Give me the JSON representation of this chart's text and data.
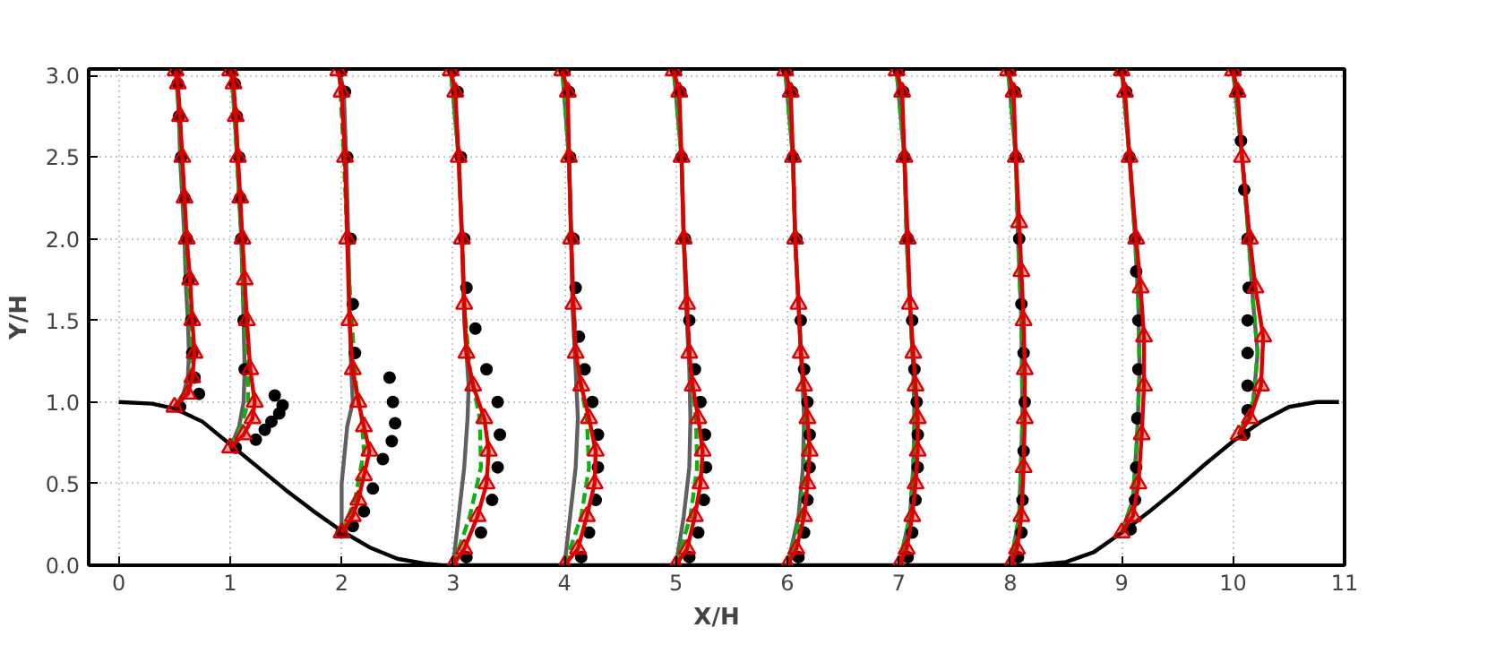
{
  "chart_data": {
    "type": "line",
    "xlabel": "X/H",
    "ylabel": "Y/H",
    "xlim": [
      -0.27,
      11
    ],
    "ylim": [
      0,
      3.04
    ],
    "xticks": [
      0,
      1,
      2,
      3,
      4,
      5,
      6,
      7,
      8,
      9,
      10,
      11
    ],
    "yticks": [
      {
        "value": 0,
        "label": "0.0"
      },
      0.5,
      {
        "value": 1,
        "label": "1.0"
      },
      1.5,
      {
        "value": 2,
        "label": "2.0"
      },
      2.5,
      {
        "value": 3,
        "label": "3.0"
      }
    ],
    "grid": true,
    "series": [
      {
        "color": "#000000",
        "line_style": "solid",
        "marker": "none",
        "x": [
          0,
          0.3,
          0.5,
          0.75,
          1,
          1.25,
          1.5,
          1.75,
          2,
          2.25,
          2.5,
          2.75,
          2.9,
          8.2,
          8.5,
          8.75,
          9,
          9.25,
          9.5,
          9.75,
          10,
          10.25,
          10.5,
          10.75,
          10.95
        ],
        "values": [
          1,
          0.99,
          0.96,
          0.88,
          0.74,
          0.6,
          0.46,
          0.33,
          0.21,
          0.11,
          0.04,
          0.01,
          0,
          0,
          0.02,
          0.08,
          0.2,
          0.33,
          0.47,
          0.62,
          0.76,
          0.88,
          0.97,
          1,
          1
        ]
      },
      {
        "color": "#606060",
        "line_style": "solid",
        "marker": "none",
        "x": [
          0.5,
          0.58,
          0.62,
          0.63,
          0.62,
          0.6,
          0.59,
          0.57,
          0.55,
          0.54,
          0.52,
          0.51,
          null,
          1.0,
          1.08,
          1.12,
          1.13,
          1.12,
          1.1,
          1.08,
          1.06,
          1.04,
          1.01,
          null,
          2.0,
          2.0,
          2.05,
          2.1,
          2.08,
          2.06,
          2.04,
          2.02,
          1.98,
          null,
          3.0,
          3.05,
          3.1,
          3.13,
          3.14,
          3.1,
          3.08,
          3.05,
          2.98,
          null,
          4.0,
          4.05,
          4.1,
          4.12,
          4.1,
          4.07,
          4.06,
          4.04,
          3.98,
          null,
          5.0,
          5.07,
          5.12,
          5.13,
          5.12,
          5.09,
          5.07,
          5.05,
          4.98,
          null,
          6.0,
          6.1,
          6.14,
          6.15,
          6.13,
          6.1,
          6.07,
          6.05,
          5.98,
          null,
          7.0,
          7.1,
          7.13,
          7.14,
          7.13,
          7.1,
          7.07,
          7.05,
          6.98,
          null,
          8.0,
          8.08,
          8.11,
          8.1,
          8.07,
          8.05,
          7.98,
          null,
          9.0,
          9.1,
          9.14,
          9.16,
          9.15,
          9.12,
          9.07,
          9.0,
          null,
          10.05,
          10.18,
          10.22,
          10.18,
          10.14,
          10.08,
          10.0
        ],
        "values": [
          0.97,
          1.05,
          1.15,
          1.3,
          1.5,
          1.75,
          2.0,
          2.25,
          2.5,
          2.75,
          2.95,
          3.03,
          null,
          0.72,
          0.85,
          1.0,
          1.2,
          1.5,
          2.0,
          2.25,
          2.5,
          2.75,
          3.03,
          null,
          0.2,
          0.5,
          0.85,
          1.0,
          1.3,
          2.0,
          2.5,
          2.9,
          3.03,
          null,
          0,
          0.3,
          0.6,
          0.9,
          1.1,
          1.5,
          2.0,
          2.5,
          3.03,
          null,
          0,
          0.3,
          0.6,
          0.9,
          1.2,
          1.6,
          2.0,
          2.5,
          3.03,
          null,
          0,
          0.3,
          0.6,
          0.9,
          1.2,
          1.6,
          2.0,
          2.5,
          3.03,
          null,
          0,
          0.3,
          0.6,
          0.9,
          1.2,
          1.6,
          2.0,
          2.5,
          3.03,
          null,
          0,
          0.3,
          0.6,
          0.9,
          1.2,
          1.6,
          2.0,
          2.5,
          3.03,
          null,
          0,
          0.3,
          0.9,
          1.5,
          2.0,
          2.5,
          3.03,
          null,
          0.2,
          0.4,
          0.8,
          1.2,
          1.6,
          2.0,
          2.5,
          3.03,
          null,
          0.8,
          1.0,
          1.3,
          1.6,
          2.0,
          2.5,
          3.03
        ]
      },
      {
        "color": "#10b010",
        "line_style": "dashed",
        "marker": "none",
        "x": [
          0.5,
          0.6,
          0.64,
          0.66,
          0.64,
          0.62,
          0.6,
          0.58,
          0.56,
          0.54,
          0.53,
          0.51,
          null,
          1.0,
          1.1,
          1.16,
          1.16,
          1.13,
          1.1,
          1.08,
          1.06,
          1.04,
          1.01,
          null,
          2.0,
          2.12,
          2.2,
          2.18,
          2.13,
          2.08,
          2.05,
          2.02,
          1.98,
          null,
          3.0,
          3.15,
          3.25,
          3.24,
          3.15,
          3.1,
          3.08,
          3.05,
          2.98,
          null,
          4.0,
          4.15,
          4.22,
          4.2,
          4.12,
          4.08,
          4.06,
          4.04,
          3.98,
          null,
          5.0,
          5.13,
          5.19,
          5.18,
          5.13,
          5.1,
          5.07,
          5.05,
          4.98,
          null,
          6.0,
          6.12,
          6.16,
          6.16,
          6.13,
          6.1,
          6.07,
          6.05,
          5.98,
          null,
          7.0,
          7.1,
          7.13,
          7.14,
          7.13,
          7.1,
          7.07,
          7.05,
          6.98,
          null,
          8.0,
          8.08,
          8.11,
          8.1,
          8.07,
          8.05,
          7.98,
          null,
          9.0,
          9.1,
          9.14,
          9.16,
          9.15,
          9.12,
          9.07,
          9.0,
          null,
          10.05,
          10.18,
          10.22,
          10.18,
          10.14,
          10.08,
          10.0
        ],
        "values": [
          0.97,
          1.05,
          1.15,
          1.3,
          1.5,
          1.75,
          2.0,
          2.25,
          2.5,
          2.75,
          2.95,
          3.03,
          null,
          0.72,
          0.85,
          1.0,
          1.2,
          1.5,
          2.0,
          2.25,
          2.5,
          2.75,
          3.03,
          null,
          0.2,
          0.4,
          0.7,
          0.9,
          1.1,
          1.6,
          2.0,
          2.5,
          3.03,
          null,
          0,
          0.3,
          0.6,
          0.9,
          1.2,
          1.6,
          2.0,
          2.5,
          3.03,
          null,
          0,
          0.3,
          0.6,
          0.9,
          1.2,
          1.6,
          2.0,
          2.5,
          3.03,
          null,
          0,
          0.3,
          0.6,
          0.9,
          1.2,
          1.6,
          2.0,
          2.5,
          3.03,
          null,
          0,
          0.3,
          0.6,
          0.9,
          1.2,
          1.6,
          2.0,
          2.5,
          3.03,
          null,
          0,
          0.3,
          0.6,
          0.9,
          1.2,
          1.6,
          2.0,
          2.5,
          3.03,
          null,
          0,
          0.3,
          0.9,
          1.5,
          2.0,
          2.5,
          3.03,
          null,
          0.2,
          0.4,
          0.8,
          1.2,
          1.6,
          2.0,
          2.5,
          3.03,
          null,
          0.8,
          1.0,
          1.3,
          1.6,
          2.0,
          2.5,
          3.03
        ]
      },
      {
        "type": "scatter",
        "color": "#000000",
        "marker": "circle",
        "x": [
          0.55,
          0.72,
          0.68,
          0.66,
          0.65,
          0.63,
          0.61,
          0.59,
          0.56,
          0.54,
          0.53,
          0.52,
          1.05,
          1.23,
          1.31,
          1.37,
          1.44,
          1.47,
          1.4,
          1.13,
          1.12,
          1.1,
          1.09,
          1.08,
          1.06,
          1.04,
          1.01,
          2.0,
          2.1,
          2.2,
          2.28,
          2.37,
          2.45,
          2.48,
          2.46,
          2.43,
          2.12,
          2.1,
          2.08,
          2.05,
          2.03,
          2.0,
          3.12,
          3.25,
          3.35,
          3.4,
          3.42,
          3.4,
          3.3,
          3.2,
          3.12,
          3.1,
          3.07,
          3.04,
          3.0,
          4.15,
          4.22,
          4.28,
          4.3,
          4.3,
          4.25,
          4.18,
          4.13,
          4.1,
          4.08,
          4.05,
          4.04,
          4.0,
          5.12,
          5.2,
          5.25,
          5.27,
          5.26,
          5.22,
          5.17,
          5.12,
          5.08,
          5.05,
          5.04,
          5.0,
          6.1,
          6.15,
          6.18,
          6.2,
          6.2,
          6.18,
          6.15,
          6.12,
          6.08,
          6.05,
          6.04,
          6.0,
          7.08,
          7.12,
          7.15,
          7.17,
          7.17,
          7.16,
          7.14,
          7.12,
          7.08,
          7.05,
          7.04,
          7.0,
          8.07,
          8.1,
          8.11,
          8.12,
          8.13,
          8.12,
          8.1,
          8.08,
          8.05,
          8.04,
          8.0,
          9.08,
          9.12,
          9.13,
          9.14,
          9.15,
          9.15,
          9.13,
          9.12,
          9.07,
          9.04,
          9.0,
          10.1,
          10.13,
          10.13,
          10.13,
          10.13,
          10.14,
          10.13,
          10.1,
          10.07,
          10.04,
          10.02
        ],
        "values": [
          0.97,
          1.05,
          1.15,
          1.3,
          1.5,
          1.75,
          2.0,
          2.25,
          2.5,
          2.75,
          2.95,
          3.03,
          0.72,
          0.77,
          0.83,
          0.88,
          0.93,
          0.98,
          1.04,
          1.2,
          1.5,
          2.0,
          2.25,
          2.5,
          2.75,
          2.95,
          3.03,
          0.2,
          0.24,
          0.33,
          0.47,
          0.65,
          0.76,
          0.87,
          1.0,
          1.15,
          1.3,
          1.6,
          2.0,
          2.5,
          2.9,
          3.03,
          0.05,
          0.2,
          0.4,
          0.6,
          0.8,
          1.0,
          1.2,
          1.45,
          1.7,
          2.0,
          2.5,
          2.9,
          3.03,
          0.05,
          0.2,
          0.4,
          0.6,
          0.8,
          1.0,
          1.2,
          1.4,
          1.7,
          2.0,
          2.5,
          2.9,
          3.03,
          0.05,
          0.2,
          0.4,
          0.6,
          0.8,
          1.0,
          1.2,
          1.5,
          2.0,
          2.5,
          2.9,
          3.03,
          0.05,
          0.2,
          0.4,
          0.6,
          0.8,
          1.0,
          1.2,
          1.5,
          2.0,
          2.5,
          2.9,
          3.03,
          0.05,
          0.2,
          0.4,
          0.6,
          0.8,
          1.0,
          1.2,
          1.5,
          2.0,
          2.5,
          2.9,
          3.03,
          0.05,
          0.2,
          0.4,
          0.7,
          1.0,
          1.3,
          1.6,
          2.0,
          2.5,
          2.9,
          3.03,
          0.22,
          0.4,
          0.6,
          0.9,
          1.2,
          1.5,
          1.8,
          2.0,
          2.5,
          2.9,
          3.03,
          0.8,
          0.95,
          1.1,
          1.3,
          1.5,
          1.7,
          2.0,
          2.3,
          2.6,
          2.9,
          3.03
        ]
      },
      {
        "color": "#dd0000",
        "line_style": "solid",
        "marker": "triangle",
        "x": [
          0.5,
          0.62,
          0.66,
          0.68,
          0.66,
          0.64,
          0.61,
          0.59,
          0.57,
          0.55,
          0.53,
          0.51,
          null,
          1.0,
          1.12,
          1.2,
          1.22,
          1.18,
          1.15,
          1.13,
          1.11,
          1.09,
          1.07,
          1.05,
          1.03,
          1.0,
          null,
          2.0,
          2.1,
          2.15,
          2.2,
          2.25,
          2.2,
          2.15,
          2.1,
          2.07,
          2.05,
          2.03,
          2.0,
          1.97,
          null,
          3.0,
          3.1,
          3.22,
          3.3,
          3.32,
          3.28,
          3.18,
          3.12,
          3.1,
          3.08,
          3.05,
          3.02,
          2.98,
          null,
          4.0,
          4.12,
          4.2,
          4.27,
          4.28,
          4.22,
          4.15,
          4.1,
          4.08,
          4.06,
          4.04,
          4.03,
          3.98,
          null,
          5.0,
          5.1,
          5.17,
          5.22,
          5.24,
          5.2,
          5.15,
          5.12,
          5.1,
          5.07,
          5.05,
          5.03,
          4.98,
          null,
          6.0,
          6.08,
          6.15,
          6.18,
          6.2,
          6.18,
          6.15,
          6.12,
          6.1,
          6.07,
          6.05,
          6.03,
          5.98,
          null,
          7.0,
          7.07,
          7.12,
          7.15,
          7.17,
          7.17,
          7.15,
          7.13,
          7.1,
          7.08,
          7.05,
          7.03,
          6.98,
          null,
          8.0,
          8.06,
          8.1,
          8.12,
          8.13,
          8.13,
          8.12,
          8.1,
          8.08,
          8.05,
          8.03,
          7.98,
          null,
          9.0,
          9.1,
          9.15,
          9.18,
          9.2,
          9.2,
          9.17,
          9.13,
          9.07,
          9.03,
          9.0,
          null,
          10.05,
          10.15,
          10.25,
          10.27,
          10.2,
          10.15,
          10.08,
          10.04,
          10.0
        ],
        "values": [
          0.97,
          1.05,
          1.15,
          1.3,
          1.5,
          1.75,
          2.0,
          2.25,
          2.5,
          2.75,
          2.95,
          3.03,
          null,
          0.72,
          0.8,
          0.9,
          1.0,
          1.2,
          1.5,
          1.75,
          2.0,
          2.25,
          2.5,
          2.75,
          2.95,
          3.03,
          null,
          0.2,
          0.3,
          0.4,
          0.55,
          0.7,
          0.85,
          1.0,
          1.2,
          1.5,
          2.0,
          2.5,
          2.9,
          3.03,
          null,
          0,
          0.1,
          0.3,
          0.5,
          0.7,
          0.9,
          1.1,
          1.3,
          1.6,
          2.0,
          2.5,
          2.9,
          3.03,
          null,
          0,
          0.1,
          0.3,
          0.5,
          0.7,
          0.9,
          1.1,
          1.3,
          1.6,
          2.0,
          2.5,
          2.9,
          3.03,
          null,
          0,
          0.1,
          0.3,
          0.5,
          0.7,
          0.9,
          1.1,
          1.3,
          1.6,
          2.0,
          2.5,
          2.9,
          3.03,
          null,
          0,
          0.1,
          0.3,
          0.5,
          0.7,
          0.9,
          1.1,
          1.3,
          1.6,
          2.0,
          2.5,
          2.9,
          3.03,
          null,
          0,
          0.1,
          0.3,
          0.5,
          0.7,
          0.9,
          1.1,
          1.3,
          1.6,
          2.0,
          2.5,
          2.9,
          3.03,
          null,
          0,
          0.1,
          0.3,
          0.6,
          0.9,
          1.2,
          1.5,
          1.8,
          2.1,
          2.5,
          2.9,
          3.03,
          null,
          0.2,
          0.3,
          0.5,
          0.8,
          1.1,
          1.4,
          1.7,
          2.0,
          2.5,
          2.9,
          3.03,
          null,
          0.8,
          0.9,
          1.1,
          1.4,
          1.7,
          2.0,
          2.5,
          2.9,
          3.03
        ]
      }
    ]
  }
}
